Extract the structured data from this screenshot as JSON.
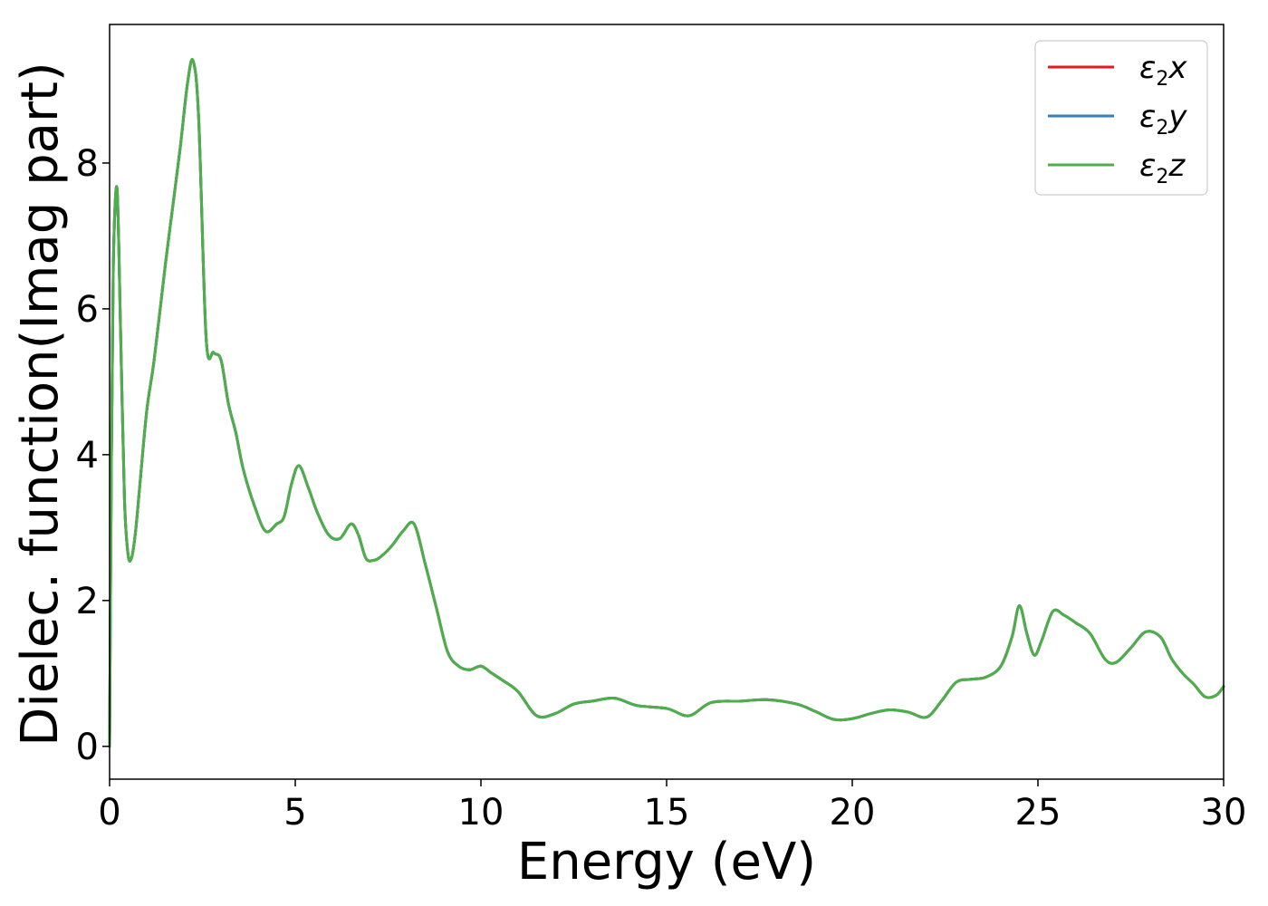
{
  "chart_data": {
    "type": "line",
    "xlabel": "Energy (eV)",
    "ylabel": "Dielec. function(Imag part)",
    "xlim": [
      0,
      30
    ],
    "ylim": [
      -0.45,
      9.9
    ],
    "xticks": [
      0,
      5,
      10,
      15,
      20,
      25,
      30
    ],
    "yticks": [
      0,
      2,
      4,
      6,
      8
    ],
    "grid": false,
    "legend_position": "top-right",
    "x": [
      0,
      0.05,
      0.1,
      0.2,
      0.3,
      0.4,
      0.5,
      0.6,
      0.7,
      0.8,
      1.0,
      1.2,
      1.5,
      1.7,
      1.9,
      2.1,
      2.25,
      2.4,
      2.6,
      2.8,
      3.0,
      3.2,
      3.4,
      3.6,
      3.9,
      4.2,
      4.5,
      4.7,
      4.9,
      5.1,
      5.35,
      5.6,
      5.9,
      6.2,
      6.5,
      6.7,
      6.9,
      7.1,
      7.3,
      7.6,
      7.9,
      8.2,
      8.5,
      8.8,
      9.1,
      9.4,
      9.7,
      10.0,
      10.3,
      10.6,
      11.0,
      11.5,
      12.0,
      12.5,
      13.0,
      13.6,
      14.2,
      15.0,
      15.6,
      16.2,
      17.0,
      17.7,
      18.5,
      19.0,
      19.5,
      20.0,
      20.5,
      21.0,
      21.5,
      22.0,
      22.4,
      22.8,
      23.2,
      23.6,
      24.0,
      24.3,
      24.5,
      24.7,
      24.9,
      25.1,
      25.4,
      25.7,
      26.0,
      26.4,
      26.8,
      27.1,
      27.5,
      27.9,
      28.3,
      28.6,
      28.9,
      29.2,
      29.5,
      29.8,
      30.0
    ],
    "series": [
      {
        "name": "ε₂x",
        "color": "#e41a1c",
        "values": [
          0,
          4.0,
          6.6,
          7.65,
          5.6,
          3.4,
          2.62,
          2.6,
          2.95,
          3.5,
          4.6,
          5.3,
          6.6,
          7.4,
          8.2,
          9.1,
          9.4,
          8.6,
          5.6,
          5.4,
          5.3,
          4.7,
          4.3,
          3.8,
          3.3,
          2.95,
          3.05,
          3.15,
          3.6,
          3.85,
          3.55,
          3.2,
          2.9,
          2.85,
          3.05,
          2.9,
          2.58,
          2.55,
          2.6,
          2.75,
          2.95,
          3.05,
          2.5,
          1.9,
          1.3,
          1.1,
          1.05,
          1.1,
          1.0,
          0.9,
          0.75,
          0.42,
          0.45,
          0.58,
          0.62,
          0.66,
          0.56,
          0.52,
          0.42,
          0.6,
          0.62,
          0.64,
          0.58,
          0.48,
          0.37,
          0.38,
          0.45,
          0.5,
          0.47,
          0.4,
          0.62,
          0.88,
          0.92,
          0.95,
          1.1,
          1.5,
          1.93,
          1.55,
          1.25,
          1.45,
          1.85,
          1.8,
          1.7,
          1.55,
          1.2,
          1.15,
          1.35,
          1.57,
          1.5,
          1.2,
          1.0,
          0.85,
          0.68,
          0.7,
          0.82
        ]
      },
      {
        "name": "ε₂y",
        "color": "#377eb8",
        "values": [
          0,
          4.0,
          6.6,
          7.65,
          5.6,
          3.4,
          2.62,
          2.6,
          2.95,
          3.5,
          4.6,
          5.3,
          6.6,
          7.4,
          8.2,
          9.1,
          9.4,
          8.6,
          5.6,
          5.4,
          5.3,
          4.7,
          4.3,
          3.8,
          3.3,
          2.95,
          3.05,
          3.15,
          3.6,
          3.85,
          3.55,
          3.2,
          2.9,
          2.85,
          3.05,
          2.9,
          2.58,
          2.55,
          2.6,
          2.75,
          2.95,
          3.05,
          2.5,
          1.9,
          1.3,
          1.1,
          1.05,
          1.1,
          1.0,
          0.9,
          0.75,
          0.42,
          0.45,
          0.58,
          0.62,
          0.66,
          0.56,
          0.52,
          0.42,
          0.6,
          0.62,
          0.64,
          0.58,
          0.48,
          0.37,
          0.38,
          0.45,
          0.5,
          0.47,
          0.4,
          0.62,
          0.88,
          0.92,
          0.95,
          1.1,
          1.5,
          1.93,
          1.55,
          1.25,
          1.45,
          1.85,
          1.8,
          1.7,
          1.55,
          1.2,
          1.15,
          1.35,
          1.57,
          1.5,
          1.2,
          1.0,
          0.85,
          0.68,
          0.7,
          0.82
        ]
      },
      {
        "name": "ε₂z",
        "color": "#4daf4a",
        "values": [
          0,
          4.0,
          6.6,
          7.65,
          5.6,
          3.4,
          2.62,
          2.6,
          2.95,
          3.5,
          4.6,
          5.3,
          6.6,
          7.4,
          8.2,
          9.1,
          9.4,
          8.6,
          5.6,
          5.4,
          5.3,
          4.7,
          4.3,
          3.8,
          3.3,
          2.95,
          3.05,
          3.15,
          3.6,
          3.85,
          3.55,
          3.2,
          2.9,
          2.85,
          3.05,
          2.9,
          2.58,
          2.55,
          2.6,
          2.75,
          2.95,
          3.05,
          2.5,
          1.9,
          1.3,
          1.1,
          1.05,
          1.1,
          1.0,
          0.9,
          0.75,
          0.42,
          0.45,
          0.58,
          0.62,
          0.66,
          0.56,
          0.52,
          0.42,
          0.6,
          0.62,
          0.64,
          0.58,
          0.48,
          0.37,
          0.38,
          0.45,
          0.5,
          0.47,
          0.4,
          0.62,
          0.88,
          0.92,
          0.95,
          1.1,
          1.5,
          1.93,
          1.55,
          1.25,
          1.45,
          1.85,
          1.8,
          1.7,
          1.55,
          1.2,
          1.15,
          1.35,
          1.57,
          1.5,
          1.2,
          1.0,
          0.85,
          0.68,
          0.7,
          0.82
        ]
      }
    ],
    "legend": [
      {
        "symbol": "ε",
        "sub": "2",
        "axis": "x"
      },
      {
        "symbol": "ε",
        "sub": "2",
        "axis": "y"
      },
      {
        "symbol": "ε",
        "sub": "2",
        "axis": "z"
      }
    ]
  }
}
